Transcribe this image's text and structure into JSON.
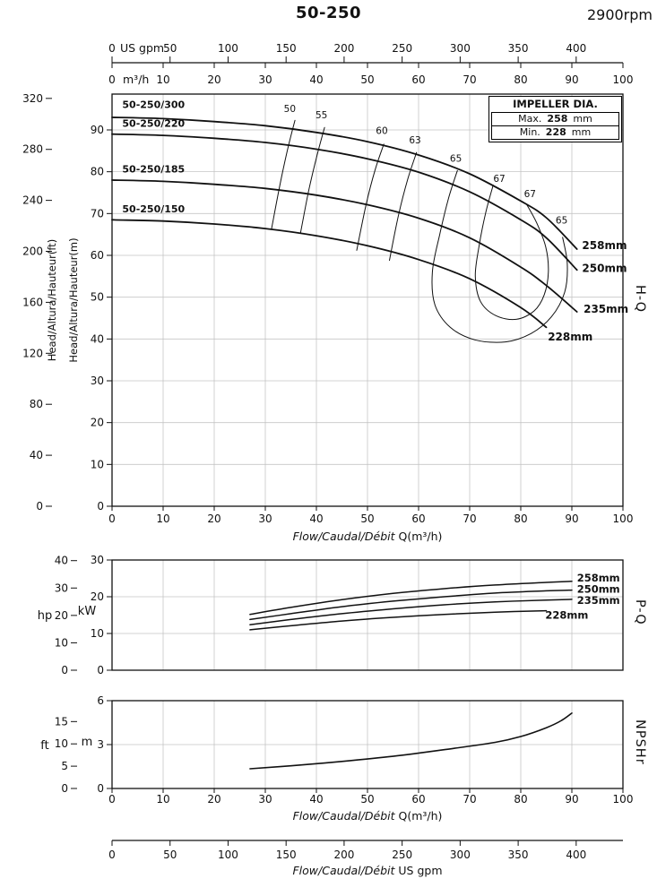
{
  "chart_data": {
    "type": "line",
    "title": "50-250",
    "rpm": "2900rpm",
    "units": {
      "m_per_ft": 0.3048,
      "kw_per_hp": 0.7457
    },
    "flow_axis": {
      "m3h": {
        "unit": "m³/h",
        "max": 100,
        "ticks": [
          0,
          10,
          20,
          30,
          40,
          50,
          60,
          70,
          80,
          90,
          100
        ]
      },
      "usgpm": {
        "unit": "US gpm",
        "ticks": [
          0,
          50,
          100,
          150,
          200,
          250,
          300,
          350,
          400
        ],
        "m3h_per_gpm": 0.22712
      },
      "xlabel_m3h": {
        "italic": "Flow/Caudal/Débit",
        "regular": " Q(m³/h)"
      },
      "xlabel_gpm": {
        "italic": "Flow/Caudal/Débit",
        "regular": "  US gpm"
      }
    },
    "hq": {
      "side_label": "H-Q",
      "y_m": {
        "title": "Head/Altura/Hauteur(m)",
        "ticks": [
          0,
          10,
          20,
          30,
          40,
          50,
          60,
          70,
          80,
          90
        ],
        "max_at_top": 98.57
      },
      "y_ft": {
        "title": "Head/Altura/Hauteur(ft)",
        "ticks": [
          0,
          40,
          80,
          120,
          160,
          200,
          240,
          280,
          320
        ]
      },
      "impeller_box": {
        "title": "IMPELLER DIA.",
        "rows": [
          {
            "label": "Max.",
            "value": "258",
            "unit": "mm"
          },
          {
            "label": "Min.",
            "value": "228",
            "unit": "mm"
          }
        ]
      },
      "curves": [
        {
          "model": "50-250/300",
          "impeller": "258mm",
          "points": [
            [
              0,
              93
            ],
            [
              10,
              92.7
            ],
            [
              20,
              92
            ],
            [
              30,
              91
            ],
            [
              40,
              89.4
            ],
            [
              50,
              87.2
            ],
            [
              60,
              84
            ],
            [
              70,
              79.5
            ],
            [
              80,
              73
            ],
            [
              85,
              69
            ],
            [
              91,
              61.5
            ]
          ],
          "model_label_pos": [
            2,
            95.2
          ],
          "impeller_label_pos": [
            92,
            61.5
          ]
        },
        {
          "model": "50-250/220",
          "impeller": "250mm",
          "points": [
            [
              0,
              89
            ],
            [
              10,
              88.7
            ],
            [
              20,
              88
            ],
            [
              30,
              87
            ],
            [
              40,
              85.4
            ],
            [
              50,
              83.1
            ],
            [
              60,
              79.9
            ],
            [
              70,
              75.2
            ],
            [
              80,
              68.5
            ],
            [
              85,
              64.2
            ],
            [
              91,
              56.5
            ]
          ],
          "model_label_pos": [
            2,
            90.8
          ],
          "impeller_label_pos": [
            92,
            56
          ]
        },
        {
          "model": "50-250/185",
          "impeller": "235mm",
          "points": [
            [
              0,
              78
            ],
            [
              10,
              77.7
            ],
            [
              20,
              77
            ],
            [
              30,
              76
            ],
            [
              40,
              74.4
            ],
            [
              50,
              72.1
            ],
            [
              60,
              68.9
            ],
            [
              70,
              64.2
            ],
            [
              80,
              57.2
            ],
            [
              85,
              52.8
            ],
            [
              91,
              46.5
            ]
          ],
          "model_label_pos": [
            2,
            79.8
          ],
          "impeller_label_pos": [
            92.3,
            46.3
          ]
        },
        {
          "model": "50-250/150",
          "impeller": "228mm",
          "points": [
            [
              0,
              68.5
            ],
            [
              10,
              68.2
            ],
            [
              20,
              67.5
            ],
            [
              30,
              66.4
            ],
            [
              40,
              64.7
            ],
            [
              50,
              62.3
            ],
            [
              60,
              59
            ],
            [
              70,
              54.4
            ],
            [
              80,
              47.5
            ],
            [
              85,
              42.8
            ]
          ],
          "model_label_pos": [
            2,
            70.3
          ],
          "impeller_label_pos": [
            85.3,
            39.6
          ]
        }
      ],
      "efficiency_lines": [
        {
          "points": [
            [
              35.8,
              92.3
            ],
            [
              34.3,
              85
            ],
            [
              32.8,
              76.5
            ],
            [
              31.2,
              66.2
            ]
          ]
        },
        {
          "points": [
            [
              41.6,
              90.6
            ],
            [
              40.1,
              83.8
            ],
            [
              38.5,
              75.5
            ],
            [
              36.9,
              65.4
            ]
          ]
        },
        {
          "points": [
            [
              53.2,
              86.6
            ],
            [
              51.5,
              80.5
            ],
            [
              49.7,
              72
            ],
            [
              47.9,
              61.2
            ]
          ]
        },
        {
          "points": [
            [
              59.6,
              84.6
            ],
            [
              57.9,
              78.3
            ],
            [
              56.1,
              69.8
            ],
            [
              54.3,
              58.8
            ]
          ]
        },
        {
          "points": [
            [
              67.6,
              80.3
            ],
            [
              65.9,
              73.8
            ],
            [
              64.1,
              64.8
            ],
            [
              62.7,
              56
            ],
            [
              63.2,
              48.2
            ],
            [
              66.2,
              42.8
            ],
            [
              71,
              39.8
            ],
            [
              77,
              39.3
            ],
            [
              82,
              41.3
            ],
            [
              86,
              45.3
            ],
            [
              88.6,
              51.2
            ],
            [
              89.1,
              58
            ],
            [
              88.2,
              64.3
            ]
          ]
        },
        {
          "points": [
            [
              74.6,
              76.8
            ],
            [
              73.1,
              70
            ],
            [
              71.8,
              62
            ],
            [
              71.1,
              55
            ],
            [
              72.1,
              49
            ],
            [
              75.1,
              45.6
            ],
            [
              79.1,
              44.7
            ],
            [
              82.6,
              46.7
            ],
            [
              84.6,
              50.6
            ],
            [
              85.4,
              56
            ],
            [
              84.9,
              62
            ],
            [
              83.1,
              67.8
            ],
            [
              81.1,
              72.3
            ]
          ]
        }
      ],
      "efficiency_labels": [
        {
          "text": "50",
          "pos": [
            34.8,
            94.3
          ]
        },
        {
          "text": "55",
          "pos": [
            41,
            92.8
          ]
        },
        {
          "text": "60",
          "pos": [
            52.8,
            89
          ]
        },
        {
          "text": "63",
          "pos": [
            59.3,
            86.8
          ]
        },
        {
          "text": "65",
          "pos": [
            67.3,
            82.4
          ]
        },
        {
          "text": "67",
          "pos": [
            75.8,
            77.6
          ]
        },
        {
          "text": "67",
          "pos": [
            81.8,
            73.9
          ]
        },
        {
          "text": "65",
          "pos": [
            88,
            67.6
          ]
        }
      ]
    },
    "pq": {
      "side_label": "P-Q",
      "y_kw": {
        "unit": "kW",
        "ticks": [
          0,
          10,
          20,
          30
        ],
        "max": 30
      },
      "y_hp": {
        "unit": "hp",
        "ticks": [
          0,
          10,
          20,
          30,
          40
        ]
      },
      "curves": [
        {
          "impeller": "258mm",
          "points": [
            [
              27,
              15.2
            ],
            [
              35,
              17.1
            ],
            [
              45,
              19.2
            ],
            [
              55,
              20.9
            ],
            [
              65,
              22.2
            ],
            [
              75,
              23.2
            ],
            [
              85,
              23.9
            ],
            [
              90,
              24.2
            ]
          ],
          "label_pos": [
            91,
            24.2
          ]
        },
        {
          "impeller": "250mm",
          "points": [
            [
              27,
              13.8
            ],
            [
              35,
              15.4
            ],
            [
              45,
              17.3
            ],
            [
              55,
              18.8
            ],
            [
              65,
              20
            ],
            [
              75,
              21
            ],
            [
              85,
              21.6
            ],
            [
              90,
              21.8
            ]
          ],
          "label_pos": [
            91,
            21.1
          ]
        },
        {
          "impeller": "235mm",
          "points": [
            [
              27,
              12.4
            ],
            [
              35,
              13.8
            ],
            [
              45,
              15.4
            ],
            [
              55,
              16.7
            ],
            [
              65,
              17.8
            ],
            [
              75,
              18.6
            ],
            [
              85,
              19.1
            ],
            [
              90,
              19.3
            ]
          ],
          "label_pos": [
            91,
            18
          ]
        },
        {
          "impeller": "228mm",
          "points": [
            [
              27,
              11
            ],
            [
              35,
              12.1
            ],
            [
              45,
              13.4
            ],
            [
              55,
              14.4
            ],
            [
              65,
              15.2
            ],
            [
              75,
              15.8
            ],
            [
              85,
              16.2
            ]
          ],
          "label_pos": [
            84.8,
            14
          ]
        }
      ]
    },
    "npshr": {
      "side_label": "NPSHr",
      "y_m": {
        "unit": "m",
        "ticks": [
          0,
          3,
          6
        ],
        "max": 6
      },
      "y_ft": {
        "unit": "ft",
        "ticks": [
          0,
          5,
          10,
          15
        ]
      },
      "curve": {
        "points": [
          [
            27,
            1.35
          ],
          [
            35,
            1.55
          ],
          [
            45,
            1.85
          ],
          [
            55,
            2.2
          ],
          [
            65,
            2.65
          ],
          [
            75,
            3.15
          ],
          [
            80,
            3.55
          ],
          [
            85,
            4.15
          ],
          [
            88,
            4.65
          ],
          [
            90,
            5.15
          ]
        ]
      }
    }
  }
}
